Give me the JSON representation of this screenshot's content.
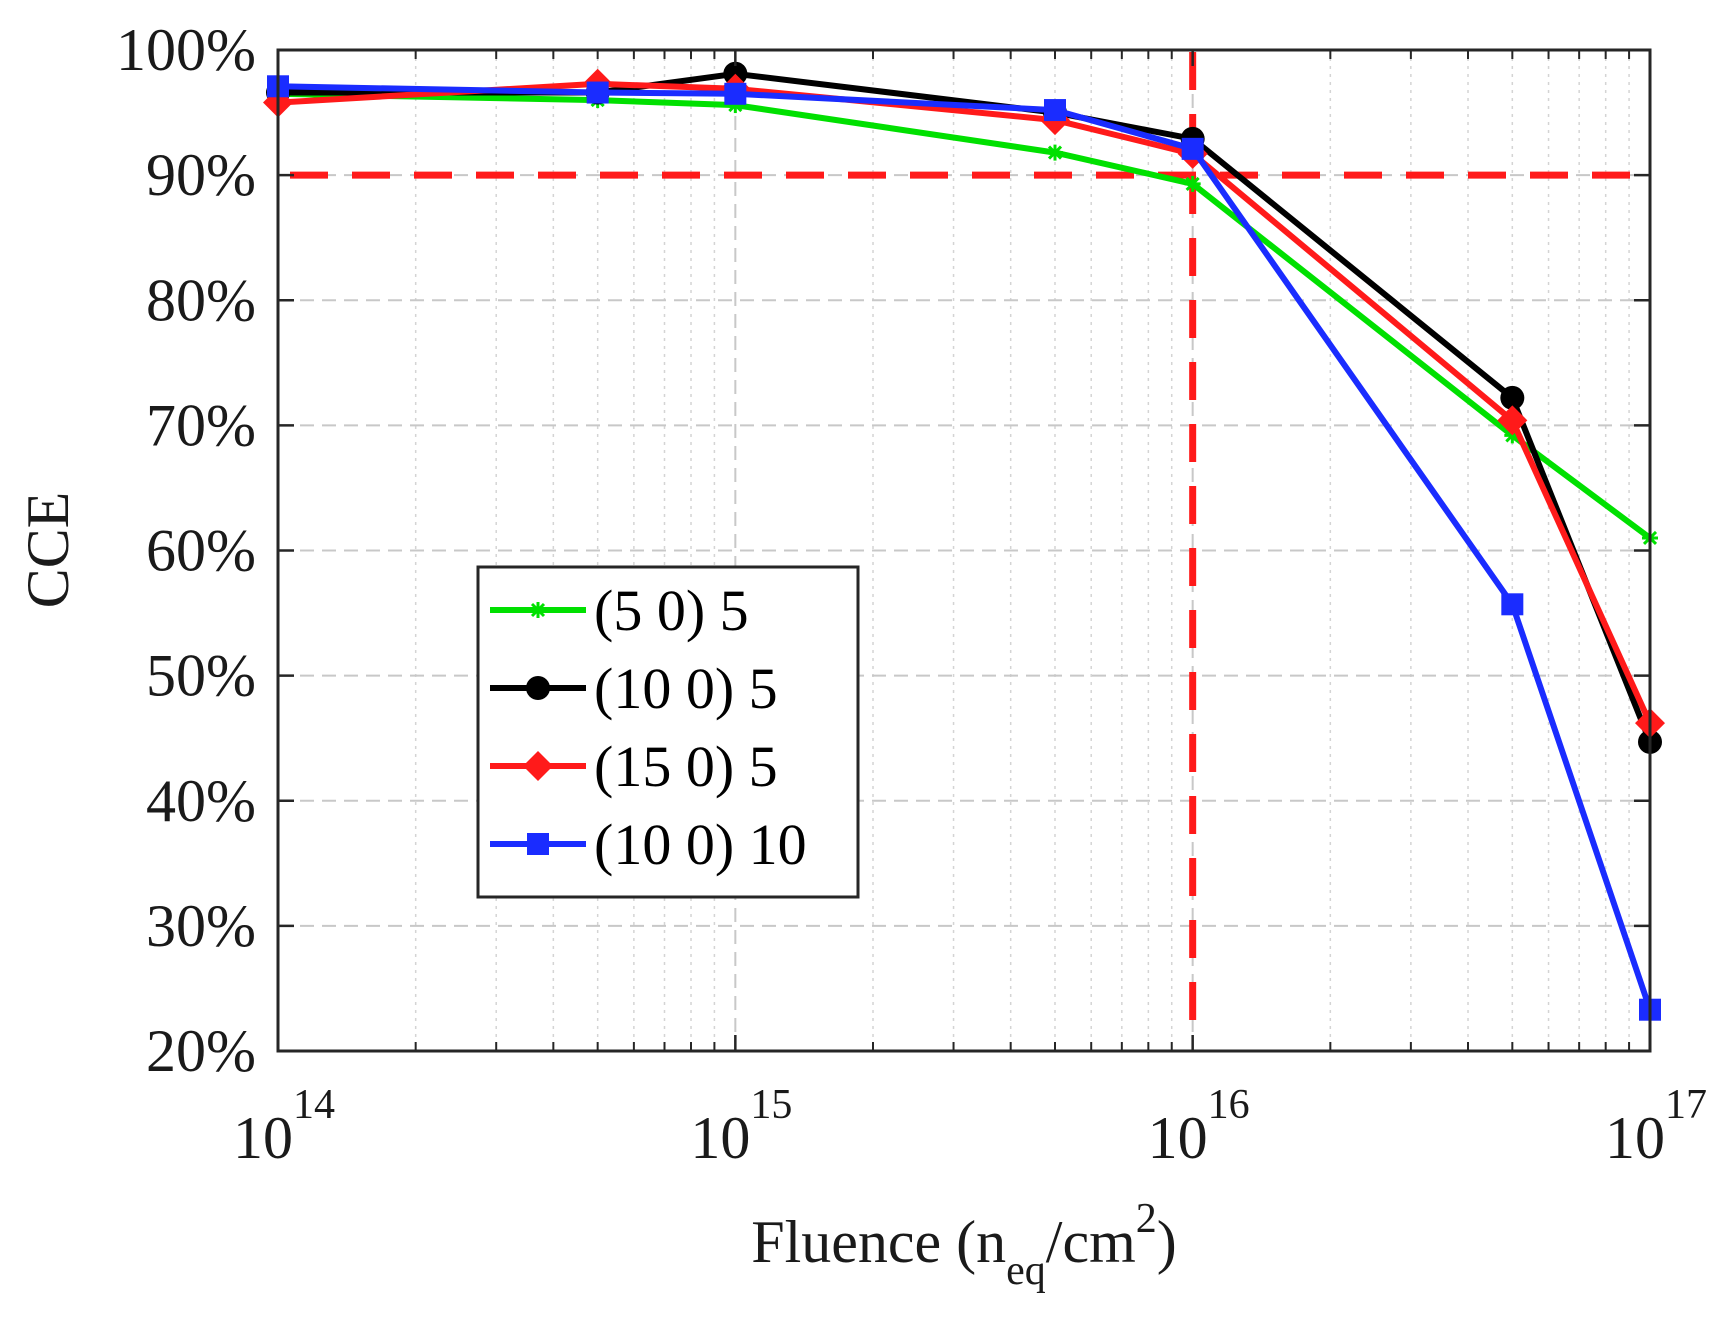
{
  "chart_data": {
    "type": "line",
    "xscale": "log",
    "xlabel_main": "Fluence (n",
    "xlabel_sub": "eq",
    "xlabel_mid": "/cm",
    "xlabel_sup": "2",
    "xlabel_end": ")",
    "ylabel": "CCE",
    "xlim": [
      100000000000000.0,
      1e+17
    ],
    "ylim": [
      20,
      100
    ],
    "x_ticks": [
      {
        "base": "10",
        "exp": "14",
        "value": 100000000000000.0
      },
      {
        "base": "10",
        "exp": "15",
        "value": 1000000000000000.0
      },
      {
        "base": "10",
        "exp": "16",
        "value": 1e+16
      },
      {
        "base": "10",
        "exp": "17",
        "value": 1e+17
      }
    ],
    "y_ticks": [
      {
        "label": "20%",
        "value": 20
      },
      {
        "label": "30%",
        "value": 30
      },
      {
        "label": "40%",
        "value": 40
      },
      {
        "label": "50%",
        "value": 50
      },
      {
        "label": "60%",
        "value": 60
      },
      {
        "label": "70%",
        "value": 70
      },
      {
        "label": "80%",
        "value": 80
      },
      {
        "label": "90%",
        "value": 90
      },
      {
        "label": "100%",
        "value": 100
      }
    ],
    "grid": true,
    "x": [
      100000000000000.0,
      500000000000000.0,
      1000000000000000.0,
      5000000000000000.0,
      1e+16,
      5e+16,
      1e+17
    ],
    "series": [
      {
        "name": "(5 0) 5",
        "color": "#00e000",
        "marker": "asterisk",
        "values": [
          96.5,
          96.0,
          95.6,
          91.8,
          89.3,
          69.2,
          61.0
        ]
      },
      {
        "name": "(10 0) 5",
        "color": "#000000",
        "marker": "circle",
        "values": [
          96.6,
          96.6,
          98.1,
          95.0,
          92.9,
          72.2,
          44.7
        ]
      },
      {
        "name": "(15 0) 5",
        "color": "#ff1a1a",
        "marker": "diamond",
        "values": [
          95.8,
          97.3,
          96.9,
          94.4,
          91.7,
          70.4,
          46.2
        ]
      },
      {
        "name": "(10 0) 10",
        "color": "#1a2cff",
        "marker": "square",
        "values": [
          97.1,
          96.6,
          96.5,
          95.2,
          92.1,
          55.7,
          23.3
        ]
      }
    ],
    "reference_lines": [
      {
        "orientation": "horizontal",
        "value": 90,
        "color": "#ff1a1a",
        "style": "dashed"
      },
      {
        "orientation": "vertical",
        "value": 1e+16,
        "color": "#ff1a1a",
        "style": "dashed"
      }
    ],
    "legend_position": "center-left"
  }
}
